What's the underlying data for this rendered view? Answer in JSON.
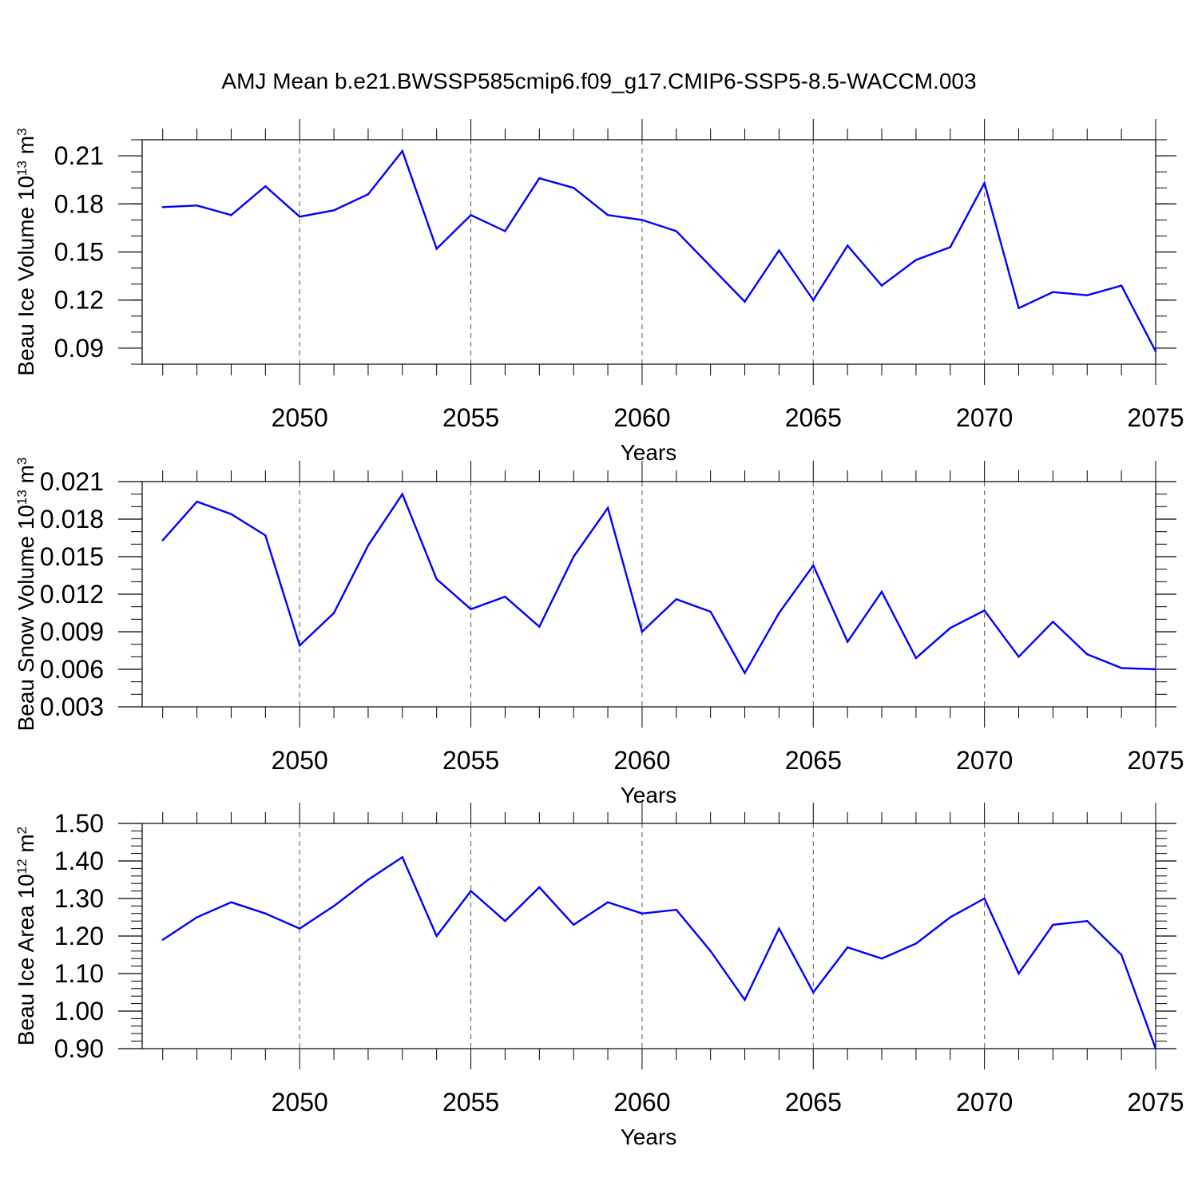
{
  "title": "AMJ Mean b.e21.BWSSP585cmip6.f09_g17.CMIP6-SSP5-8.5-WACCM.003",
  "line_color": "#0000ff",
  "chart_data": [
    {
      "type": "line",
      "xlabel": "Years",
      "ylabel_main": "Beau Ice Volume 10",
      "ylabel_exp": "13",
      "ylabel_unit": " m",
      "ylabel_unit_exp": "3",
      "xlim": [
        2046,
        2075
      ],
      "ylim": [
        0.08,
        0.22
      ],
      "xticks": [
        2050,
        2055,
        2060,
        2065,
        2070,
        2075
      ],
      "yticks": [
        0.09,
        0.12,
        0.15,
        0.18,
        0.21
      ],
      "ytick_labels": [
        "0.09",
        "0.12",
        "0.15",
        "0.18",
        "0.21"
      ],
      "ytick_minor_step": 0.01,
      "x": [
        2046,
        2047,
        2048,
        2049,
        2050,
        2051,
        2052,
        2053,
        2054,
        2055,
        2056,
        2057,
        2058,
        2059,
        2060,
        2061,
        2062,
        2063,
        2064,
        2065,
        2066,
        2067,
        2068,
        2069,
        2070,
        2071,
        2072,
        2073,
        2074,
        2075
      ],
      "series": [
        {
          "name": "Beau Ice Volume",
          "values": [
            0.178,
            0.179,
            0.173,
            0.191,
            0.172,
            0.176,
            0.186,
            0.213,
            0.152,
            0.173,
            0.163,
            0.196,
            0.19,
            0.173,
            0.17,
            0.163,
            0.141,
            0.119,
            0.151,
            0.12,
            0.154,
            0.129,
            0.145,
            0.153,
            0.193,
            0.115,
            0.125,
            0.123,
            0.129,
            0.088
          ]
        }
      ]
    },
    {
      "type": "line",
      "xlabel": "Years",
      "ylabel_main": "Beau Snow Volume 10",
      "ylabel_exp": "13",
      "ylabel_unit": " m",
      "ylabel_unit_exp": "3",
      "xlim": [
        2046,
        2075
      ],
      "ylim": [
        0.003,
        0.021
      ],
      "xticks": [
        2050,
        2055,
        2060,
        2065,
        2070,
        2075
      ],
      "yticks": [
        0.003,
        0.006,
        0.009,
        0.012,
        0.015,
        0.018,
        0.021
      ],
      "ytick_labels": [
        "0.003",
        "0.006",
        "0.009",
        "0.012",
        "0.015",
        "0.018",
        "0.021"
      ],
      "ytick_minor_step": 0.001,
      "x": [
        2046,
        2047,
        2048,
        2049,
        2050,
        2051,
        2052,
        2053,
        2054,
        2055,
        2056,
        2057,
        2058,
        2059,
        2060,
        2061,
        2062,
        2063,
        2064,
        2065,
        2066,
        2067,
        2068,
        2069,
        2070,
        2071,
        2072,
        2073,
        2074,
        2075
      ],
      "series": [
        {
          "name": "Beau Snow Volume",
          "values": [
            0.0163,
            0.0194,
            0.0184,
            0.0167,
            0.0079,
            0.0105,
            0.0159,
            0.02,
            0.0132,
            0.0108,
            0.0118,
            0.0094,
            0.015,
            0.0189,
            0.009,
            0.0116,
            0.0106,
            0.0057,
            0.0105,
            0.0143,
            0.0082,
            0.0122,
            0.0069,
            0.0093,
            0.0107,
            0.007,
            0.0098,
            0.0072,
            0.0061,
            0.006
          ]
        }
      ]
    },
    {
      "type": "line",
      "xlabel": "Years",
      "ylabel_main": "Beau Ice Area 10",
      "ylabel_exp": "12",
      "ylabel_unit": " m",
      "ylabel_unit_exp": "2",
      "xlim": [
        2046,
        2075
      ],
      "ylim": [
        0.9,
        1.5
      ],
      "xticks": [
        2050,
        2055,
        2060,
        2065,
        2070,
        2075
      ],
      "yticks": [
        0.9,
        1.0,
        1.1,
        1.2,
        1.3,
        1.4,
        1.5
      ],
      "ytick_labels": [
        "0.90",
        "1.00",
        "1.10",
        "1.20",
        "1.30",
        "1.40",
        "1.50"
      ],
      "ytick_minor_step": 0.02,
      "x": [
        2046,
        2047,
        2048,
        2049,
        2050,
        2051,
        2052,
        2053,
        2054,
        2055,
        2056,
        2057,
        2058,
        2059,
        2060,
        2061,
        2062,
        2063,
        2064,
        2065,
        2066,
        2067,
        2068,
        2069,
        2070,
        2071,
        2072,
        2073,
        2074,
        2075
      ],
      "series": [
        {
          "name": "Beau Ice Area",
          "values": [
            1.19,
            1.25,
            1.29,
            1.26,
            1.22,
            1.28,
            1.35,
            1.41,
            1.2,
            1.32,
            1.24,
            1.33,
            1.23,
            1.29,
            1.26,
            1.27,
            1.16,
            1.03,
            1.22,
            1.05,
            1.17,
            1.14,
            1.18,
            1.25,
            1.3,
            1.1,
            1.23,
            1.24,
            1.15,
            0.9
          ]
        }
      ]
    }
  ]
}
